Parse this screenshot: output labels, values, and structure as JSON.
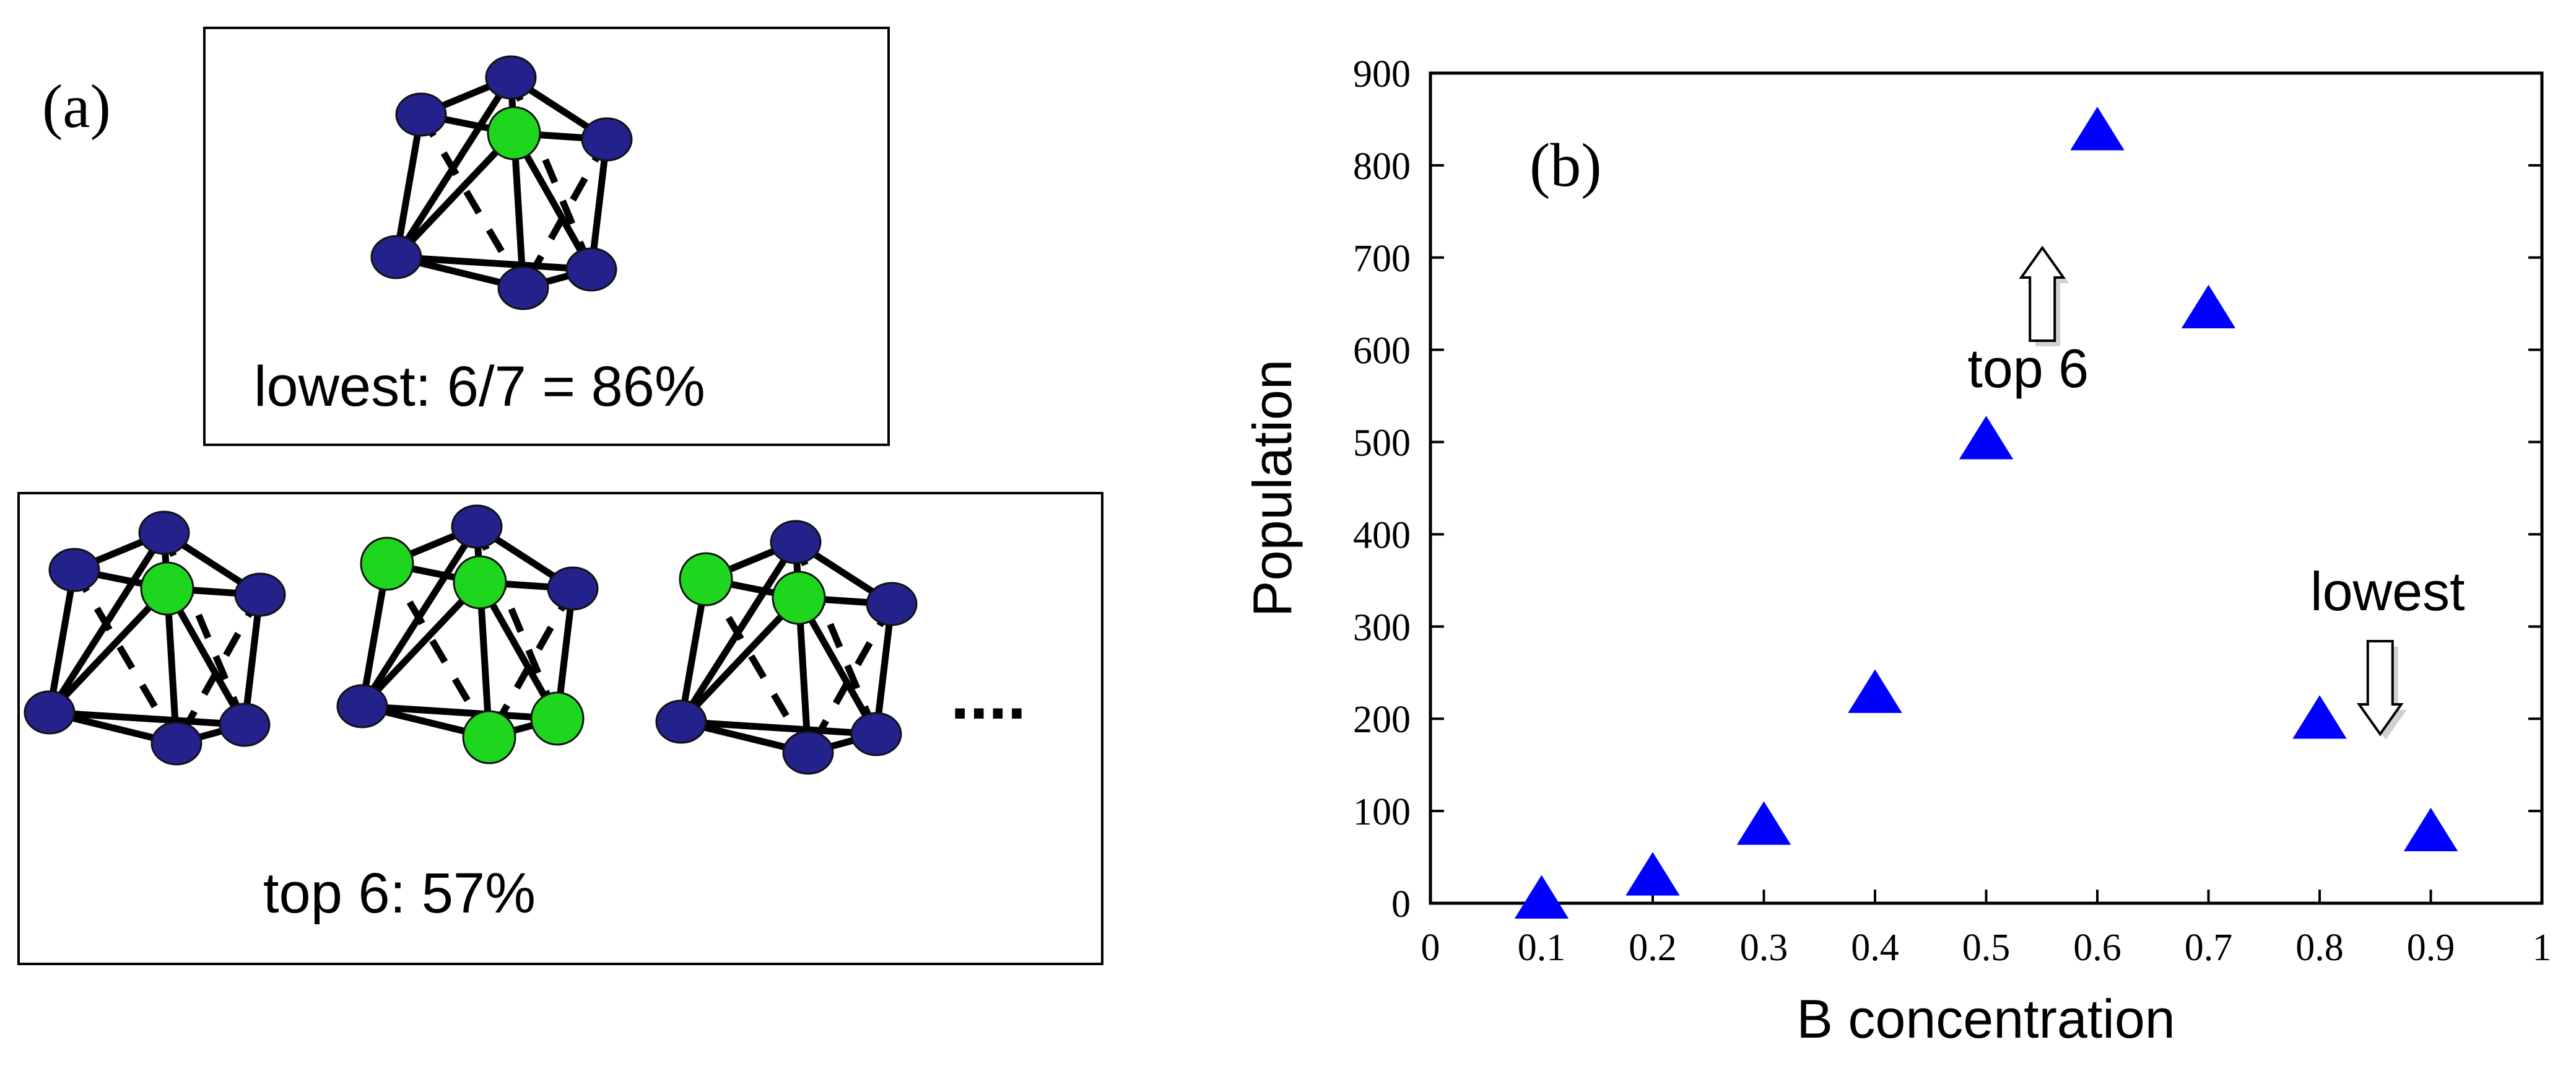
{
  "panel_a": {
    "label": "(a)",
    "box1": {
      "caption": "lowest: 6/7 = 86%",
      "clusters": [
        {
          "atoms": [
            "blue",
            "blue",
            "blue",
            "blue",
            "blue",
            "blue",
            "green"
          ]
        }
      ]
    },
    "box2": {
      "caption": "top 6: 57%",
      "ellipsis": "....",
      "clusters": [
        {
          "atoms": [
            "blue",
            "blue",
            "blue",
            "blue",
            "blue",
            "blue",
            "green"
          ]
        },
        {
          "atoms": [
            "green",
            "blue",
            "blue",
            "blue",
            "green",
            "green",
            "green"
          ]
        },
        {
          "atoms": [
            "green",
            "blue",
            "blue",
            "blue",
            "blue",
            "blue",
            "green"
          ]
        }
      ]
    }
  },
  "chart_data": {
    "type": "scatter",
    "panel_label": "(b)",
    "xlabel": "B concentration",
    "ylabel": "Population",
    "xlim": [
      0,
      1
    ],
    "ylim": [
      0,
      900
    ],
    "x_ticks": [
      "0",
      "0.1",
      "0.2",
      "0.3",
      "0.4",
      "0.5",
      "0.6",
      "0.7",
      "0.8",
      "0.9",
      "1"
    ],
    "y_ticks": [
      "0",
      "100",
      "200",
      "300",
      "400",
      "500",
      "600",
      "700",
      "800",
      "900"
    ],
    "grid": false,
    "marker": "triangle",
    "marker_color": "#0000ff",
    "points": [
      {
        "x": 0.1,
        "y": 5
      },
      {
        "x": 0.2,
        "y": 30
      },
      {
        "x": 0.3,
        "y": 85
      },
      {
        "x": 0.4,
        "y": 228
      },
      {
        "x": 0.5,
        "y": 503
      },
      {
        "x": 0.6,
        "y": 838
      },
      {
        "x": 0.7,
        "y": 645
      },
      {
        "x": 0.8,
        "y": 200
      },
      {
        "x": 0.9,
        "y": 78
      }
    ],
    "annotations": [
      {
        "text": "top 6",
        "arrow": "up",
        "x": 0.56
      },
      {
        "text": "lowest",
        "arrow": "down",
        "x": 0.85
      }
    ]
  },
  "colors": {
    "atom_blue": "#22228a",
    "atom_green": "#1fd61f",
    "marker": "#0000ff",
    "line": "#000000"
  }
}
